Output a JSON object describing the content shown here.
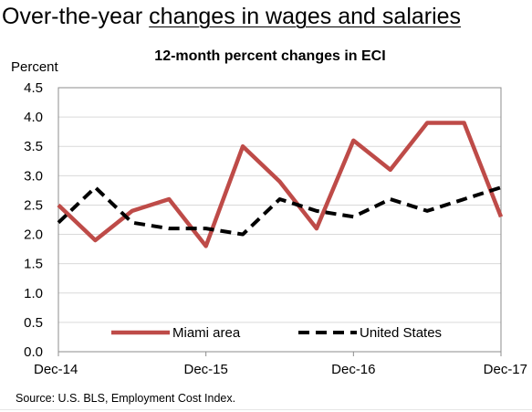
{
  "slide": {
    "title_prefix": "Over-the-year ",
    "title_emphasis": "changes in wages and salaries",
    "source": "Source: U.S. BLS, Employment Cost Index."
  },
  "chart_data": {
    "type": "line",
    "title": "12-month percent changes in ECI",
    "ylabel": "Percent",
    "xlabel": "",
    "ylim": [
      0.0,
      4.5
    ],
    "ytick_step": 0.5,
    "y_tick_labels": [
      "0.0",
      "0.5",
      "1.0",
      "1.5",
      "2.0",
      "2.5",
      "3.0",
      "3.5",
      "4.0",
      "4.5"
    ],
    "x": [
      "Dec-14",
      "Mar-15",
      "Jun-15",
      "Sep-15",
      "Dec-15",
      "Mar-16",
      "Jun-16",
      "Sep-16",
      "Dec-16",
      "Mar-17",
      "Jun-17",
      "Sep-17",
      "Dec-17"
    ],
    "x_tick_labels": [
      "Dec-14",
      "Dec-15",
      "Dec-16",
      "Dec-17"
    ],
    "grid": "horizontal",
    "legend_position": "bottom-inside",
    "series": [
      {
        "name": "Miami area",
        "style": "solid",
        "color": "#be4b48",
        "values": [
          2.5,
          1.9,
          2.4,
          2.6,
          1.8,
          3.5,
          2.9,
          2.1,
          3.6,
          3.1,
          3.9,
          3.9,
          2.3
        ]
      },
      {
        "name": "United States",
        "style": "dashed",
        "color": "#000000",
        "values": [
          2.2,
          2.8,
          2.2,
          2.1,
          2.1,
          2.0,
          2.6,
          2.4,
          2.3,
          2.6,
          2.4,
          2.6,
          2.8
        ]
      }
    ]
  }
}
